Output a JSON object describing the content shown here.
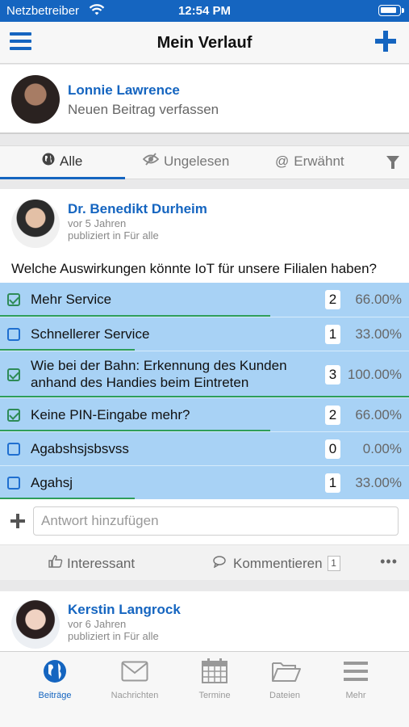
{
  "status_bar": {
    "carrier": "Netzbetreiber",
    "time": "12:54 PM",
    "battery_level": 0.9
  },
  "nav": {
    "title": "Mein Verlauf",
    "menu_icon": "hamburger-icon",
    "add_icon": "plus-icon"
  },
  "composer": {
    "name": "Lonnie Lawrence",
    "placeholder": "Neuen Beitrag verfassen"
  },
  "filter_tabs": [
    {
      "label": "Alle",
      "icon": "globe-icon",
      "active": true
    },
    {
      "label": "Ungelesen",
      "icon": "eye-slash-icon",
      "active": false
    },
    {
      "label": "Erwähnt",
      "icon": "at-icon",
      "active": false
    }
  ],
  "post": {
    "author": "Dr. Benedikt Durheim",
    "age": "vor 5 Jahren",
    "published": "publiziert in Für alle",
    "question": "Welche Auswirkungen könnte IoT für unsere Filialen haben?",
    "options": [
      {
        "label": "Mehr Service",
        "checked": true,
        "count": "2",
        "percent": "66.00%",
        "fraction": 0.66
      },
      {
        "label": "Schnellerer Service",
        "checked": false,
        "count": "1",
        "percent": "33.00%",
        "fraction": 0.33
      },
      {
        "label": "Wie bei der Bahn: Erkennung des Kunden anhand des Handies beim Eintreten",
        "checked": true,
        "count": "3",
        "percent": "100.00%",
        "fraction": 1.0
      },
      {
        "label": "Keine PIN-Eingabe mehr?",
        "checked": true,
        "count": "2",
        "percent": "66.00%",
        "fraction": 0.66
      },
      {
        "label": "Agabshsjsbsvss",
        "checked": false,
        "count": "0",
        "percent": "0.00%",
        "fraction": 0.0
      },
      {
        "label": "Agahsj",
        "checked": false,
        "count": "1",
        "percent": "33.00%",
        "fraction": 0.33
      }
    ],
    "answer_placeholder": "Antwort hinzufügen",
    "like_label": "Interessant",
    "comment_label": "Kommentieren",
    "comment_count": "1",
    "more_label": "•••"
  },
  "post2": {
    "author": "Kerstin Langrock",
    "age": "vor 6 Jahren",
    "published": "publiziert in Für alle"
  },
  "tab_bar": [
    {
      "label": "Beiträge",
      "icon": "globe-icon",
      "active": true
    },
    {
      "label": "Nachrichten",
      "icon": "envelope-icon",
      "active": false
    },
    {
      "label": "Termine",
      "icon": "calendar-icon",
      "active": false
    },
    {
      "label": "Dateien",
      "icon": "folder-icon",
      "active": false
    },
    {
      "label": "Mehr",
      "icon": "menu-icon",
      "active": false
    }
  ],
  "colors": {
    "brand": "#1565c0",
    "option_bg": "#a8d2f5",
    "vote_bar": "#2e9e5b"
  }
}
